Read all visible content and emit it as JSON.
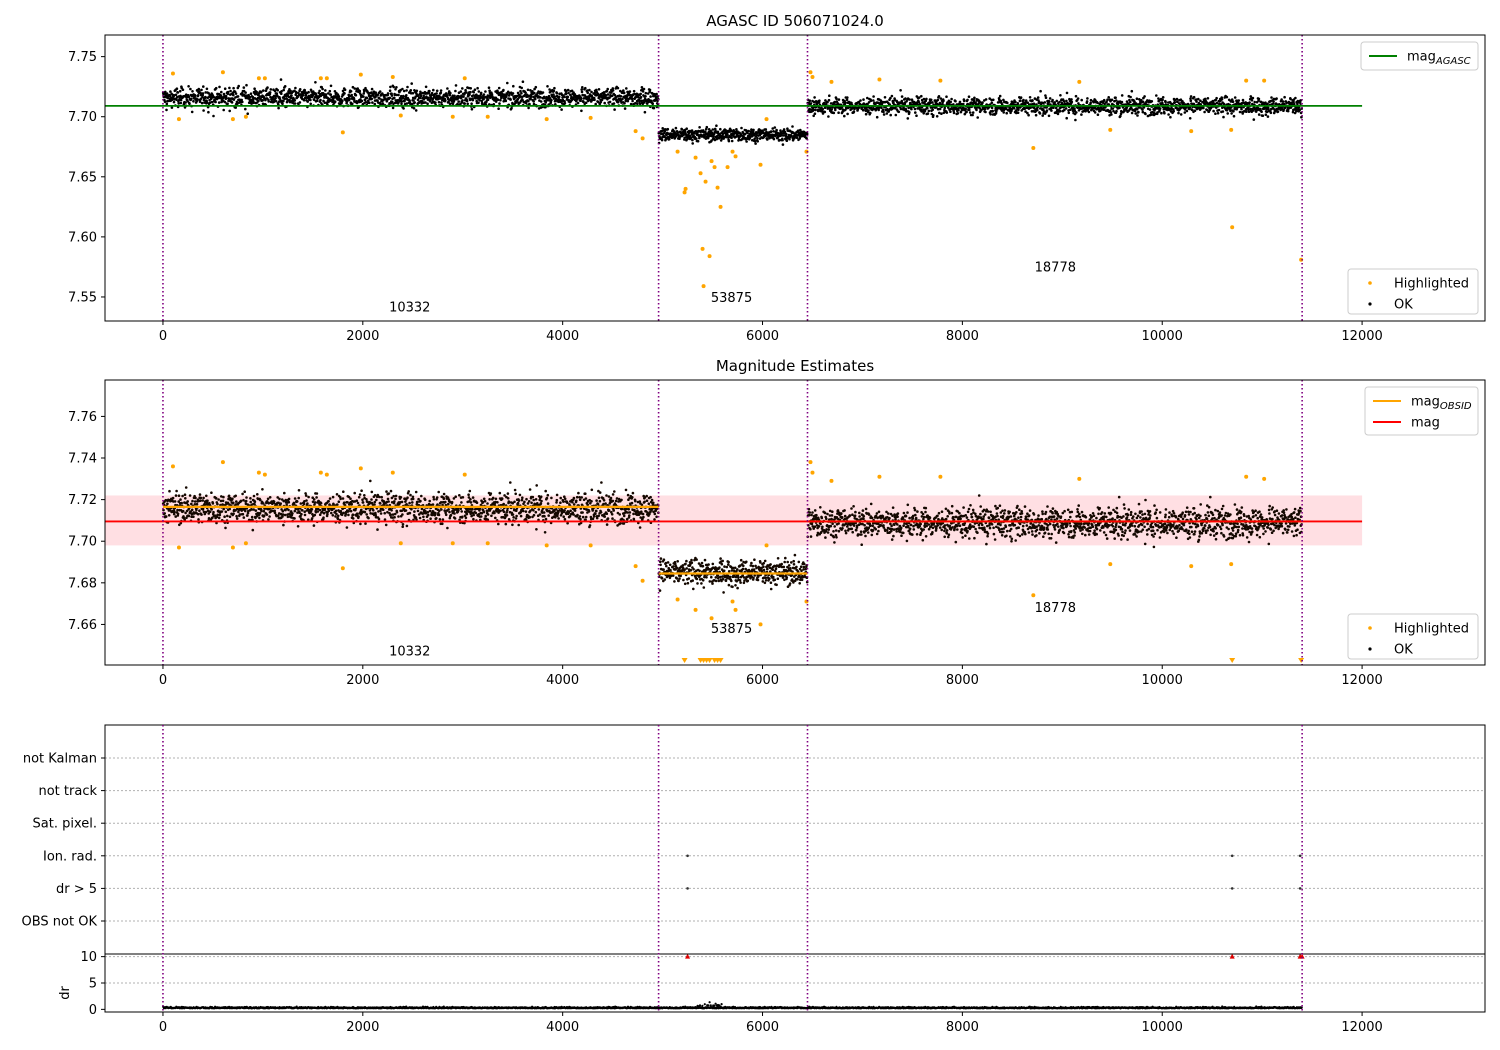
{
  "chart_data": [
    {
      "type": "scatter",
      "title": "AGASC ID 506071024.0",
      "xlim": [
        -580,
        13230
      ],
      "ylim": [
        7.53,
        7.768
      ],
      "x_ticks": [
        0,
        2000,
        4000,
        6000,
        8000,
        10000,
        12000
      ],
      "y_ticks": [
        7.55,
        7.6,
        7.65,
        7.7,
        7.75
      ],
      "obs_boundaries": [
        0,
        4960,
        6450,
        11400
      ],
      "obs_labels": [
        {
          "text": "10332",
          "x": 2470,
          "y": 7.538
        },
        {
          "text": "53875",
          "x": 5690,
          "y": 7.546
        },
        {
          "text": "18778",
          "x": 8930,
          "y": 7.571
        }
      ],
      "reference_lines": [
        {
          "name": "mag_AGASC",
          "color": "#008000",
          "y": 7.709,
          "x_from": -580,
          "x_to": 12000
        }
      ],
      "ok_segments": [
        {
          "x_from": 0,
          "x_to": 4960,
          "center": 7.716,
          "spread": 0.007
        },
        {
          "x_from": 4960,
          "x_to": 6450,
          "center": 7.685,
          "spread": 0.005
        },
        {
          "x_from": 6450,
          "x_to": 11400,
          "center": 7.709,
          "spread": 0.0065
        }
      ],
      "highlighted_points": [
        [
          100,
          7.736
        ],
        [
          160,
          7.698
        ],
        [
          600,
          7.737
        ],
        [
          700,
          7.698
        ],
        [
          830,
          7.7
        ],
        [
          960,
          7.732
        ],
        [
          1020,
          7.732
        ],
        [
          1580,
          7.732
        ],
        [
          1640,
          7.732
        ],
        [
          1800,
          7.687
        ],
        [
          1980,
          7.735
        ],
        [
          2300,
          7.733
        ],
        [
          2380,
          7.701
        ],
        [
          2900,
          7.7
        ],
        [
          3020,
          7.732
        ],
        [
          3250,
          7.7
        ],
        [
          3840,
          7.698
        ],
        [
          4280,
          7.699
        ],
        [
          4730,
          7.688
        ],
        [
          4800,
          7.682
        ],
        [
          5150,
          7.671
        ],
        [
          5220,
          7.637
        ],
        [
          5230,
          7.64
        ],
        [
          5330,
          7.666
        ],
        [
          5380,
          7.653
        ],
        [
          5400,
          7.59
        ],
        [
          5410,
          7.559
        ],
        [
          5430,
          7.646
        ],
        [
          5470,
          7.584
        ],
        [
          5490,
          7.663
        ],
        [
          5520,
          7.658
        ],
        [
          5550,
          7.641
        ],
        [
          5580,
          7.625
        ],
        [
          5650,
          7.658
        ],
        [
          5700,
          7.671
        ],
        [
          5730,
          7.667
        ],
        [
          5980,
          7.66
        ],
        [
          6040,
          7.698
        ],
        [
          6440,
          7.671
        ],
        [
          6480,
          7.737
        ],
        [
          6500,
          7.733
        ],
        [
          6690,
          7.729
        ],
        [
          7170,
          7.731
        ],
        [
          7780,
          7.73
        ],
        [
          8710,
          7.674
        ],
        [
          9170,
          7.729
        ],
        [
          9480,
          7.689
        ],
        [
          10290,
          7.688
        ],
        [
          10690,
          7.689
        ],
        [
          10700,
          7.608
        ],
        [
          10840,
          7.73
        ],
        [
          11020,
          7.73
        ],
        [
          11390,
          7.581
        ]
      ],
      "legend": {
        "position": "top-right",
        "entries": [
          {
            "label": "mag",
            "subscript": "AGASC",
            "color": "#008000"
          }
        ]
      },
      "legend2": {
        "position": "bottom-right",
        "entries": [
          {
            "label": "Highlighted",
            "color": "#ffa500"
          },
          {
            "label": "OK",
            "color": "#000000"
          }
        ]
      }
    },
    {
      "type": "scatter",
      "title": "Magnitude Estimates",
      "xlim": [
        -580,
        13230
      ],
      "ylim": [
        7.6405,
        7.7775
      ],
      "x_ticks": [
        0,
        2000,
        4000,
        6000,
        8000,
        10000,
        12000
      ],
      "y_ticks": [
        7.66,
        7.68,
        7.7,
        7.72,
        7.74,
        7.76
      ],
      "obs_boundaries": [
        0,
        4960,
        6450,
        11400
      ],
      "obs_labels": [
        {
          "text": "10332",
          "x": 2470,
          "y": 7.645
        },
        {
          "text": "53875",
          "x": 5690,
          "y": 7.656
        },
        {
          "text": "18778",
          "x": 8930,
          "y": 7.666
        }
      ],
      "band": {
        "y_from": 7.698,
        "y_to": 7.722,
        "x_from": -580,
        "x_to": 12000,
        "color": "#ffc0c8"
      },
      "reference_lines": [
        {
          "name": "mag",
          "color": "#ff0000",
          "y": 7.7095,
          "x_from": -580,
          "x_to": 12000
        }
      ],
      "obsid_lines": [
        {
          "x_from": 0,
          "x_to": 4960,
          "y": 7.7165
        },
        {
          "x_from": 4960,
          "x_to": 6450,
          "y": 7.6845
        },
        {
          "x_from": 6450,
          "x_to": 11400,
          "y": 7.7095
        }
      ],
      "ok_segments": [
        {
          "x_from": 0,
          "x_to": 4960,
          "center": 7.716,
          "spread": 0.0065
        },
        {
          "x_from": 4960,
          "x_to": 6450,
          "center": 7.685,
          "spread": 0.0055
        },
        {
          "x_from": 6450,
          "x_to": 11400,
          "center": 7.709,
          "spread": 0.0065
        }
      ],
      "highlighted_points": [
        [
          100,
          7.736
        ],
        [
          160,
          7.697
        ],
        [
          600,
          7.738
        ],
        [
          700,
          7.697
        ],
        [
          830,
          7.699
        ],
        [
          960,
          7.733
        ],
        [
          1020,
          7.732
        ],
        [
          1580,
          7.733
        ],
        [
          1640,
          7.732
        ],
        [
          1800,
          7.687
        ],
        [
          1980,
          7.735
        ],
        [
          2300,
          7.733
        ],
        [
          2380,
          7.699
        ],
        [
          2900,
          7.699
        ],
        [
          3020,
          7.732
        ],
        [
          3250,
          7.699
        ],
        [
          3840,
          7.698
        ],
        [
          4280,
          7.698
        ],
        [
          4730,
          7.688
        ],
        [
          4800,
          7.681
        ],
        [
          5150,
          7.672
        ],
        [
          5330,
          7.667
        ],
        [
          5490,
          7.663
        ],
        [
          5700,
          7.671
        ],
        [
          5730,
          7.667
        ],
        [
          5980,
          7.66
        ],
        [
          6040,
          7.698
        ],
        [
          6440,
          7.671
        ],
        [
          6480,
          7.738
        ],
        [
          6500,
          7.733
        ],
        [
          6690,
          7.729
        ],
        [
          7170,
          7.731
        ],
        [
          7780,
          7.731
        ],
        [
          8710,
          7.674
        ],
        [
          9170,
          7.73
        ],
        [
          9480,
          7.689
        ],
        [
          10290,
          7.688
        ],
        [
          10690,
          7.689
        ],
        [
          10840,
          7.731
        ],
        [
          11020,
          7.73
        ]
      ],
      "clipped_points": [
        5220,
        5380,
        5410,
        5440,
        5470,
        5520,
        5550,
        5580,
        10700,
        11390
      ],
      "legend": {
        "position": "top-right",
        "entries": [
          {
            "label": "mag",
            "subscript": "OBSID",
            "color": "#ffa500"
          },
          {
            "label": "mag",
            "color": "#ff0000"
          }
        ]
      },
      "legend2": {
        "position": "bottom-right",
        "entries": [
          {
            "label": "Highlighted",
            "color": "#ffa500"
          },
          {
            "label": "OK",
            "color": "#000000"
          }
        ]
      }
    },
    {
      "type": "scatter",
      "xlim": [
        -580,
        13230
      ],
      "x_ticks": [
        0,
        2000,
        4000,
        6000,
        8000,
        10000,
        12000
      ],
      "obs_boundaries": [
        0,
        4960,
        6450,
        11400
      ],
      "flag_rows": [
        "not Kalman",
        "not track",
        "Sat. pixel.",
        "Ion. rad.",
        "dr > 5",
        "OBS not OK"
      ],
      "flag_points": [
        {
          "row": "Ion. rad.",
          "x": 5250
        },
        {
          "row": "Ion. rad.",
          "x": 10700
        },
        {
          "row": "Ion. rad.",
          "x": 11380
        },
        {
          "row": "dr > 5",
          "x": 5250
        },
        {
          "row": "dr > 5",
          "x": 10700
        },
        {
          "row": "dr > 5",
          "x": 11380
        }
      ],
      "dr": {
        "ylabel": "dr",
        "ylim": [
          -0.5,
          10.5
        ],
        "y_ticks": [
          0,
          5,
          10
        ],
        "baseline": 0.2,
        "clipped_points": [
          5250,
          10700,
          11380,
          11400
        ],
        "bump": {
          "x_from": 5350,
          "x_to": 5600,
          "peak": 1.2
        }
      }
    }
  ]
}
